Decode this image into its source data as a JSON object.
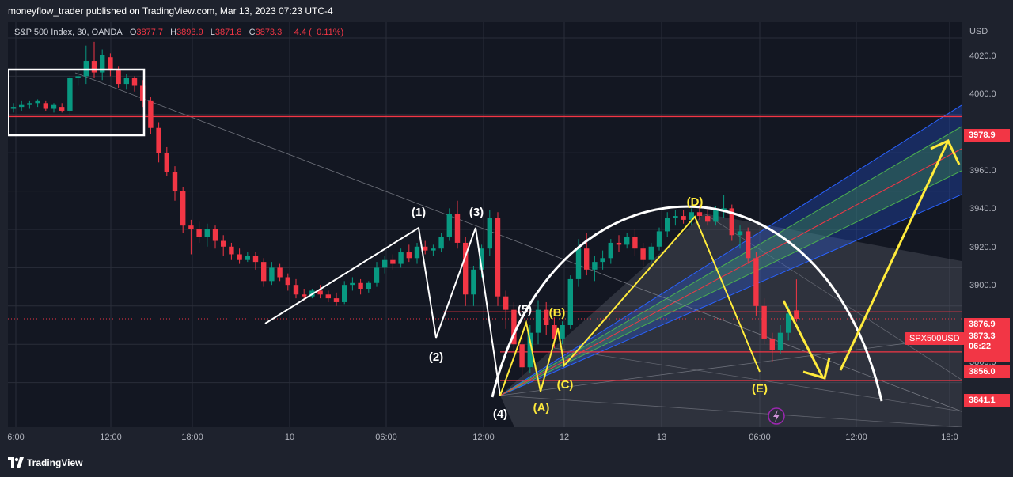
{
  "header": {
    "publish_text": "moneyflow_trader published on TradingView.com, Mar 13, 2023 07:23 UTC-4"
  },
  "legend": {
    "symbol": "S&P 500 Index, 30, OANDA",
    "o_key": "O",
    "o_val": "3877.7",
    "h_key": "H",
    "h_val": "3893.9",
    "l_key": "L",
    "l_val": "3871.8",
    "c_key": "C",
    "c_val": "3873.3",
    "change": "−4.4 (−0.11%)"
  },
  "price_axis": {
    "currency": "USD",
    "ticks": [
      "4020.0",
      "4000.0",
      "3960.0",
      "3940.0",
      "3920.0",
      "3900.0",
      "3860.0"
    ],
    "tags": {
      "level_top": "3978.9",
      "level_1": "3876.9",
      "last": "3873.3",
      "countdown": "06:22",
      "level_2": "3856.0",
      "level_3": "3841.1"
    },
    "symbol_tag": "SPX500USD"
  },
  "time_axis": {
    "ticks": [
      "6:00",
      "12:00",
      "18:00",
      "10",
      "06:00",
      "12:00",
      "12",
      "13",
      "06:00",
      "12:00",
      "18:0"
    ]
  },
  "annotations": {
    "wave_labels": [
      "(1)",
      "(2)",
      "(3)",
      "(4)",
      "(5)"
    ],
    "abc_labels": [
      "(A)",
      "(B)",
      "(C)",
      "(D)",
      "(E)"
    ]
  },
  "footer": {
    "brand": "TradingView"
  },
  "colors": {
    "up": "#089981",
    "down": "#f23645",
    "level": "#f23645",
    "wave": "#ffffff",
    "abc": "#ffeb3b",
    "background": "#131722"
  },
  "chart_data": {
    "type": "candlestick",
    "title": "S&P 500 Index, 30, OANDA",
    "ylabel": "USD",
    "ylim": [
      3833,
      4030
    ],
    "grid": true,
    "horizontal_levels": [
      3978.9,
      3876.9,
      3856.0,
      3841.1
    ],
    "last_price": 3873.3,
    "ohlc": [
      [
        3983,
        3986,
        3981,
        3984
      ],
      [
        3984,
        3987,
        3982,
        3985
      ],
      [
        3985,
        3987,
        3983,
        3986
      ],
      [
        3986,
        3988,
        3984,
        3987
      ],
      [
        3986,
        3987,
        3982,
        3983
      ],
      [
        3983,
        3986,
        3981,
        3985
      ],
      [
        3984,
        3986,
        3981,
        3982
      ],
      [
        3982,
        4000,
        3980,
        3999
      ],
      [
        3999,
        4004,
        3995,
        4000
      ],
      [
        4000,
        4016,
        3996,
        4008
      ],
      [
        4008,
        4018,
        3999,
        4002
      ],
      [
        4002,
        4014,
        3998,
        4011
      ],
      [
        4010,
        4012,
        4000,
        4003
      ],
      [
        4003,
        4005,
        3994,
        3996
      ],
      [
        3996,
        4001,
        3993,
        3999
      ],
      [
        3999,
        4000,
        3992,
        3995
      ],
      [
        3995,
        3998,
        3984,
        3987
      ],
      [
        3987,
        3989,
        3970,
        3973
      ],
      [
        3973,
        3976,
        3955,
        3960
      ],
      [
        3960,
        3963,
        3948,
        3950
      ],
      [
        3950,
        3953,
        3935,
        3940
      ],
      [
        3940,
        3942,
        3918,
        3922
      ],
      [
        3922,
        3925,
        3907,
        3920
      ],
      [
        3920,
        3924,
        3913,
        3916
      ],
      [
        3916,
        3923,
        3911,
        3920
      ],
      [
        3920,
        3922,
        3910,
        3914
      ],
      [
        3914,
        3917,
        3906,
        3911
      ],
      [
        3911,
        3913,
        3904,
        3907
      ],
      [
        3907,
        3910,
        3902,
        3904
      ],
      [
        3904,
        3908,
        3903,
        3906
      ],
      [
        3906,
        3908,
        3899,
        3903
      ],
      [
        3903,
        3905,
        3890,
        3893
      ],
      [
        3893,
        3903,
        3891,
        3900
      ],
      [
        3900,
        3902,
        3893,
        3895
      ],
      [
        3895,
        3897,
        3888,
        3891
      ],
      [
        3891,
        3894,
        3884,
        3886
      ],
      [
        3886,
        3889,
        3883,
        3885
      ],
      [
        3885,
        3889,
        3884,
        3888
      ],
      [
        3888,
        3891,
        3884,
        3886
      ],
      [
        3886,
        3888,
        3882,
        3884
      ],
      [
        3884,
        3887,
        3880,
        3882
      ],
      [
        3882,
        3893,
        3881,
        3891
      ],
      [
        3891,
        3895,
        3888,
        3892
      ],
      [
        3892,
        3894,
        3886,
        3889
      ],
      [
        3889,
        3893,
        3887,
        3892
      ],
      [
        3892,
        3903,
        3890,
        3900
      ],
      [
        3900,
        3906,
        3897,
        3904
      ],
      [
        3904,
        3907,
        3899,
        3902
      ],
      [
        3902,
        3910,
        3900,
        3908
      ],
      [
        3908,
        3912,
        3903,
        3905
      ],
      [
        3905,
        3913,
        3902,
        3911
      ],
      [
        3911,
        3914,
        3907,
        3909
      ],
      [
        3909,
        3912,
        3906,
        3910
      ],
      [
        3910,
        3918,
        3908,
        3916
      ],
      [
        3916,
        3931,
        3914,
        3928
      ],
      [
        3928,
        3935,
        3910,
        3913
      ],
      [
        3913,
        3916,
        3880,
        3886
      ],
      [
        3886,
        3901,
        3880,
        3899
      ],
      [
        3899,
        3912,
        3895,
        3910
      ],
      [
        3910,
        3930,
        3906,
        3926
      ],
      [
        3926,
        3929,
        3880,
        3885
      ],
      [
        3885,
        3888,
        3868,
        3878
      ],
      [
        3878,
        3882,
        3855,
        3860
      ],
      [
        3860,
        3866,
        3843,
        3848
      ],
      [
        3848,
        3870,
        3845,
        3866
      ],
      [
        3866,
        3883,
        3860,
        3878
      ],
      [
        3878,
        3882,
        3865,
        3870
      ],
      [
        3870,
        3874,
        3858,
        3863
      ],
      [
        3863,
        3872,
        3860,
        3870
      ],
      [
        3870,
        3896,
        3868,
        3894
      ],
      [
        3894,
        3915,
        3890,
        3910
      ],
      [
        3910,
        3918,
        3896,
        3899
      ],
      [
        3899,
        3906,
        3893,
        3903
      ],
      [
        3903,
        3909,
        3899,
        3905
      ],
      [
        3905,
        3915,
        3902,
        3913
      ],
      [
        3913,
        3917,
        3908,
        3912
      ],
      [
        3912,
        3918,
        3910,
        3916
      ],
      [
        3916,
        3920,
        3906,
        3910
      ],
      [
        3910,
        3913,
        3901,
        3904
      ],
      [
        3904,
        3913,
        3902,
        3911
      ],
      [
        3911,
        3921,
        3909,
        3919
      ],
      [
        3919,
        3929,
        3916,
        3926
      ],
      [
        3926,
        3930,
        3922,
        3927
      ],
      [
        3927,
        3930,
        3923,
        3925
      ],
      [
        3925,
        3931,
        3922,
        3929
      ],
      [
        3929,
        3933,
        3925,
        3927
      ],
      [
        3927,
        3932,
        3922,
        3924
      ],
      [
        3924,
        3932,
        3922,
        3930
      ],
      [
        3930,
        3938,
        3926,
        3931
      ],
      [
        3931,
        3933,
        3914,
        3917
      ],
      [
        3917,
        3922,
        3910,
        3919
      ],
      [
        3919,
        3921,
        3902,
        3905
      ],
      [
        3905,
        3908,
        3875,
        3880
      ],
      [
        3880,
        3884,
        3860,
        3863
      ],
      [
        3863,
        3866,
        3851,
        3857
      ],
      [
        3857,
        3870,
        3855,
        3866
      ],
      [
        3866,
        3880,
        3862,
        3876
      ],
      [
        3877.7,
        3893.9,
        3871.8,
        3873.3
      ]
    ]
  }
}
